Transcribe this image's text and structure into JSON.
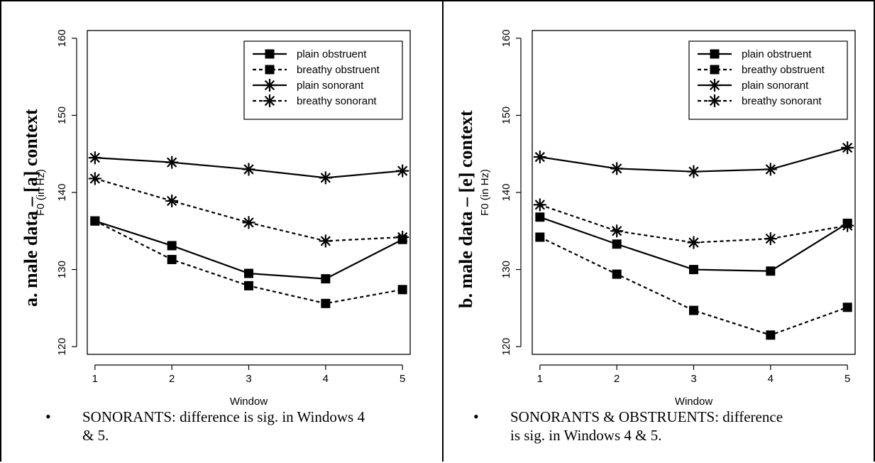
{
  "chart_data": [
    {
      "type": "line",
      "side_title": "a. male data – [a] context",
      "xlabel": "Window",
      "ylabel": "F0 (in Hz)",
      "x": [
        1,
        2,
        3,
        4,
        5
      ],
      "xticks": [
        "1",
        "2",
        "3",
        "4",
        "5"
      ],
      "yticks": [
        "120",
        "130",
        "140",
        "150",
        "160"
      ],
      "xlim": [
        0.9,
        5.1
      ],
      "ylim": [
        119,
        161
      ],
      "grid": false,
      "legend_position": "top-right",
      "series": [
        {
          "name": "plain obstruent",
          "values": [
            136.3,
            133.1,
            129.5,
            128.8,
            133.9
          ],
          "line": "solid",
          "marker": "square"
        },
        {
          "name": "breathy obstruent",
          "values": [
            136.3,
            131.3,
            127.9,
            125.6,
            127.4
          ],
          "line": "dashed",
          "marker": "square"
        },
        {
          "name": "plain sonorant",
          "values": [
            144.5,
            143.9,
            143.0,
            141.9,
            142.8
          ],
          "line": "solid",
          "marker": "star"
        },
        {
          "name": "breathy sonorant",
          "values": [
            141.8,
            138.9,
            136.1,
            133.7,
            134.2
          ],
          "line": "dashed",
          "marker": "star"
        }
      ],
      "bullet": "SONORANTS: difference is sig. in Windows 4",
      "bullet_line2": "& 5."
    },
    {
      "type": "line",
      "side_title": "b. male data – [e] context",
      "xlabel": "Window",
      "ylabel": "F0 (in Hz)",
      "x": [
        1,
        2,
        3,
        4,
        5
      ],
      "xticks": [
        "1",
        "2",
        "3",
        "4",
        "5"
      ],
      "yticks": [
        "120",
        "130",
        "140",
        "150",
        "160"
      ],
      "xlim": [
        0.9,
        5.1
      ],
      "ylim": [
        119,
        161
      ],
      "grid": false,
      "legend_position": "top-right",
      "series": [
        {
          "name": "plain obstruent",
          "values": [
            136.8,
            133.3,
            130.0,
            129.8,
            136.0
          ],
          "line": "solid",
          "marker": "square"
        },
        {
          "name": "breathy obstruent",
          "values": [
            134.2,
            129.4,
            124.7,
            121.5,
            125.1
          ],
          "line": "dashed",
          "marker": "square"
        },
        {
          "name": "plain sonorant",
          "values": [
            144.6,
            143.1,
            142.7,
            143.0,
            145.8
          ],
          "line": "solid",
          "marker": "star"
        },
        {
          "name": "breathy sonorant",
          "values": [
            138.4,
            135.0,
            133.5,
            134.0,
            135.7
          ],
          "line": "dashed",
          "marker": "star"
        }
      ],
      "bullet": "SONORANTS & OBSTRUENTS: difference",
      "bullet_line2": "is sig. in Windows 4 & 5."
    }
  ],
  "bullet_symbol": "•"
}
